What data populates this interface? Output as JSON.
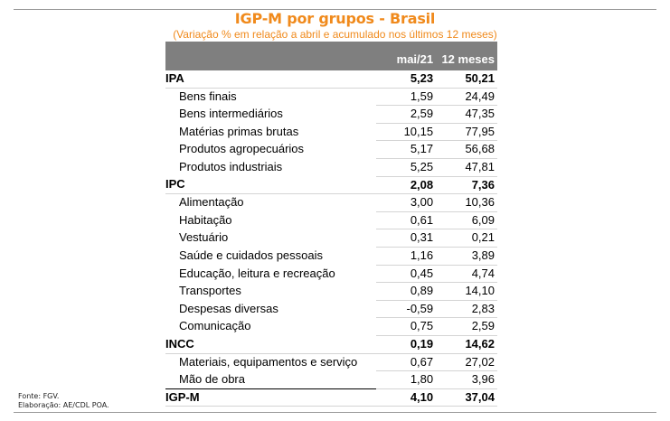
{
  "title": "IGP-M por grupos - Brasil",
  "subtitle": "(Variação % em relação a abril e acumulado nos últimos 12 meses)",
  "columns": [
    "",
    "mai/21",
    "12 meses"
  ],
  "rows": [
    {
      "label": "IPA",
      "mai": "5,23",
      "m12": "50,21",
      "kind": "group"
    },
    {
      "label": "Bens finais",
      "mai": "1,59",
      "m12": "24,49",
      "kind": "sub"
    },
    {
      "label": "Bens intermediários",
      "mai": "2,59",
      "m12": "47,35",
      "kind": "sub"
    },
    {
      "label": "Matérias primas brutas",
      "mai": "10,15",
      "m12": "77,95",
      "kind": "sub"
    },
    {
      "label": "Produtos agropecuários",
      "mai": "5,17",
      "m12": "56,68",
      "kind": "sub"
    },
    {
      "label": "Produtos industriais",
      "mai": "5,25",
      "m12": "47,81",
      "kind": "sub"
    },
    {
      "label": "IPC",
      "mai": "2,08",
      "m12": "7,36",
      "kind": "group"
    },
    {
      "label": "Alimentação",
      "mai": "3,00",
      "m12": "10,36",
      "kind": "sub"
    },
    {
      "label": "Habitação",
      "mai": "0,61",
      "m12": "6,09",
      "kind": "sub"
    },
    {
      "label": "Vestuário",
      "mai": "0,31",
      "m12": "0,21",
      "kind": "sub"
    },
    {
      "label": "Saúde e cuidados pessoais",
      "mai": "1,16",
      "m12": "3,89",
      "kind": "sub"
    },
    {
      "label": "Educação, leitura e recreação",
      "mai": "0,45",
      "m12": "4,74",
      "kind": "sub"
    },
    {
      "label": "Transportes",
      "mai": "0,89",
      "m12": "14,10",
      "kind": "sub"
    },
    {
      "label": "Despesas diversas",
      "mai": "-0,59",
      "m12": "2,83",
      "kind": "sub"
    },
    {
      "label": "Comunicação",
      "mai": "0,75",
      "m12": "2,59",
      "kind": "sub"
    },
    {
      "label": "INCC",
      "mai": "0,19",
      "m12": "14,62",
      "kind": "group"
    },
    {
      "label": "Materiais, equipamentos e serviço",
      "mai": "0,67",
      "m12": "27,02",
      "kind": "sub"
    },
    {
      "label": "Mão de obra",
      "mai": "1,80",
      "m12": "3,96",
      "kind": "sub"
    },
    {
      "label": "IGP-M",
      "mai": "4,10",
      "m12": "37,04",
      "kind": "total"
    }
  ],
  "footer": {
    "source": "Fonte: FGV.",
    "credit": "Elaboração: AE/CDL POA."
  }
}
